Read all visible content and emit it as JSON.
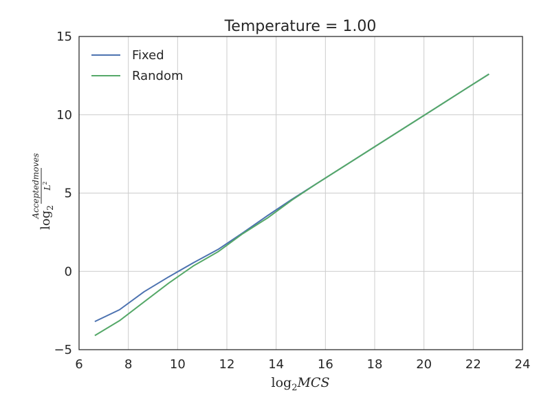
{
  "chart_data": {
    "type": "line",
    "title": "Temperature = 1.00",
    "xlabel": "log2MCS",
    "ylabel": "log2(Acceptedmoves/L^2)",
    "xlim": [
      6,
      24
    ],
    "ylim": [
      -5,
      15
    ],
    "xticks": [
      6,
      8,
      10,
      12,
      14,
      16,
      18,
      20,
      22,
      24
    ],
    "yticks": [
      -5,
      0,
      5,
      10,
      15
    ],
    "grid": true,
    "legend_position": "top-left",
    "series": [
      {
        "name": "Fixed",
        "color": "#4c72b0",
        "x": [
          6.64,
          7.64,
          8.64,
          9.64,
          10.64,
          11.64,
          12.64,
          13.64,
          14.64,
          15.64,
          16.64,
          17.64,
          18.64,
          19.64,
          20.64,
          21.64,
          22.64
        ],
        "y": [
          -3.2,
          -2.45,
          -1.3,
          -0.35,
          0.55,
          1.4,
          2.45,
          3.55,
          4.6,
          5.6,
          6.6,
          7.6,
          8.6,
          9.6,
          10.6,
          11.6,
          12.6
        ]
      },
      {
        "name": "Random",
        "color": "#55a868",
        "x": [
          6.64,
          7.64,
          8.64,
          9.64,
          10.64,
          11.64,
          12.64,
          13.64,
          14.64,
          15.64,
          16.64,
          17.64,
          18.64,
          19.64,
          20.64,
          21.64,
          22.64
        ],
        "y": [
          -4.1,
          -3.15,
          -1.95,
          -0.75,
          0.35,
          1.25,
          2.4,
          3.4,
          4.55,
          5.6,
          6.6,
          7.6,
          8.6,
          9.6,
          10.6,
          11.6,
          12.6
        ]
      }
    ]
  }
}
